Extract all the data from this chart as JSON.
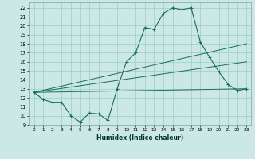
{
  "title": "",
  "xlabel": "Humidex (Indice chaleur)",
  "bg_color": "#cce8e4",
  "grid_color": "#99cccc",
  "line_color": "#1a6b60",
  "xlim": [
    -0.5,
    23.5
  ],
  "ylim": [
    9,
    22.6
  ],
  "yticks": [
    9,
    10,
    11,
    12,
    13,
    14,
    15,
    16,
    17,
    18,
    19,
    20,
    21,
    22
  ],
  "xticks": [
    0,
    1,
    2,
    3,
    4,
    5,
    6,
    7,
    8,
    9,
    10,
    11,
    12,
    13,
    14,
    15,
    16,
    17,
    18,
    19,
    20,
    21,
    22,
    23
  ],
  "line1_x": [
    0,
    1,
    2,
    3,
    4,
    5,
    6,
    7,
    8,
    9,
    10,
    11,
    12,
    13,
    14,
    15,
    16,
    17,
    18,
    19,
    20,
    21,
    22,
    23
  ],
  "line1_y": [
    12.6,
    11.8,
    11.5,
    11.5,
    10.0,
    9.3,
    10.3,
    10.2,
    9.5,
    13.0,
    16.0,
    17.0,
    19.8,
    19.6,
    21.4,
    22.0,
    21.8,
    22.0,
    18.2,
    16.5,
    14.9,
    13.5,
    12.8,
    13.0
  ],
  "line2_x": [
    0,
    23
  ],
  "line2_y": [
    12.6,
    18.0
  ],
  "line3_x": [
    0,
    23
  ],
  "line3_y": [
    12.6,
    16.0
  ],
  "line4_x": [
    0,
    23
  ],
  "line4_y": [
    12.6,
    13.0
  ]
}
